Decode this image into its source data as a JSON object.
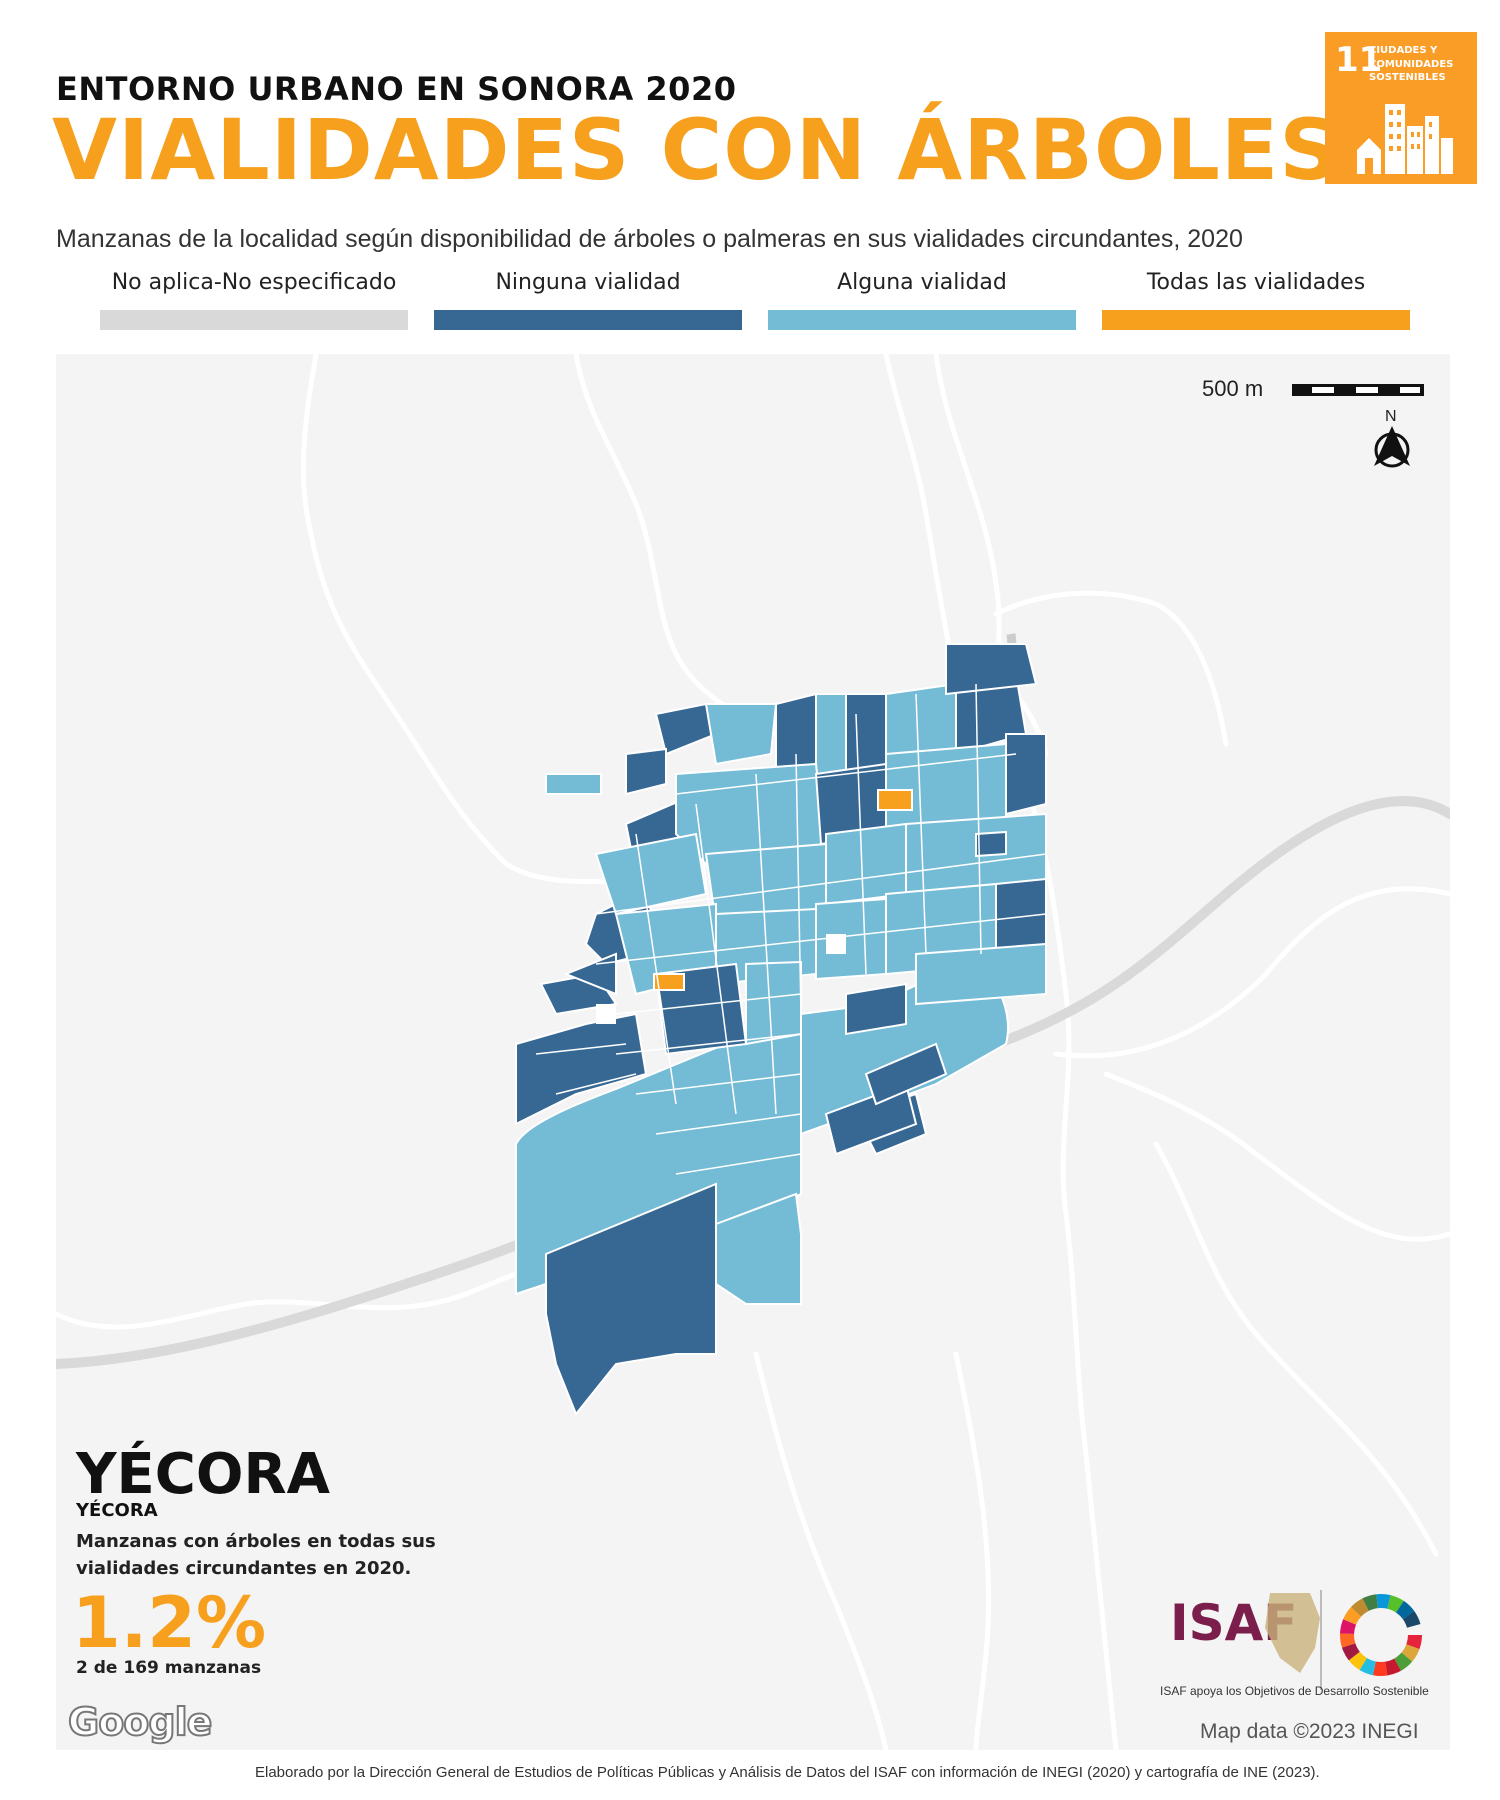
{
  "header": {
    "kicker": "ENTORNO URBANO EN SONORA 2020",
    "title": "VIALIDADES CON ÁRBOLES",
    "subtitle": "Manzanas de la localidad según disponibilidad de árboles o palmeras en sus vialidades circundantes, 2020"
  },
  "legend": [
    {
      "label": "No aplica-No especificado",
      "color": "#D9D9D9"
    },
    {
      "label": "Ninguna vialidad",
      "color": "#376894"
    },
    {
      "label": "Alguna vialidad",
      "color": "#74BBD6"
    },
    {
      "label": "Todas las vialidades",
      "color": "#F7A01E"
    }
  ],
  "sdg_badge": {
    "number": "11",
    "text": "Ciudades y comunidades sostenibles",
    "color": "#F99D26"
  },
  "map": {
    "scale_label": "500 m",
    "north_label": "N",
    "attribution": "Map data ©2023 INEGI",
    "provider_logo": "Google",
    "north-arrow-icon": "north-arrow-icon"
  },
  "locality": {
    "municipality": "YÉCORA",
    "locality": "YÉCORA",
    "description": "Manzanas con árboles en todas sus vialidades circundantes en 2020.",
    "percent": "1.2%",
    "count": "2 de 169 manzanas"
  },
  "logos": {
    "isaf": "ISAF",
    "isaf_caption": "ISAF apoya los Objetivos de Desarrollo Sostenible"
  },
  "footer": {
    "credit": "Elaborado por la Dirección General de Estudios de Políticas Públicas y Análisis de Datos del ISAF con información de INEGI (2020) y cartografía de INE (2023)."
  }
}
